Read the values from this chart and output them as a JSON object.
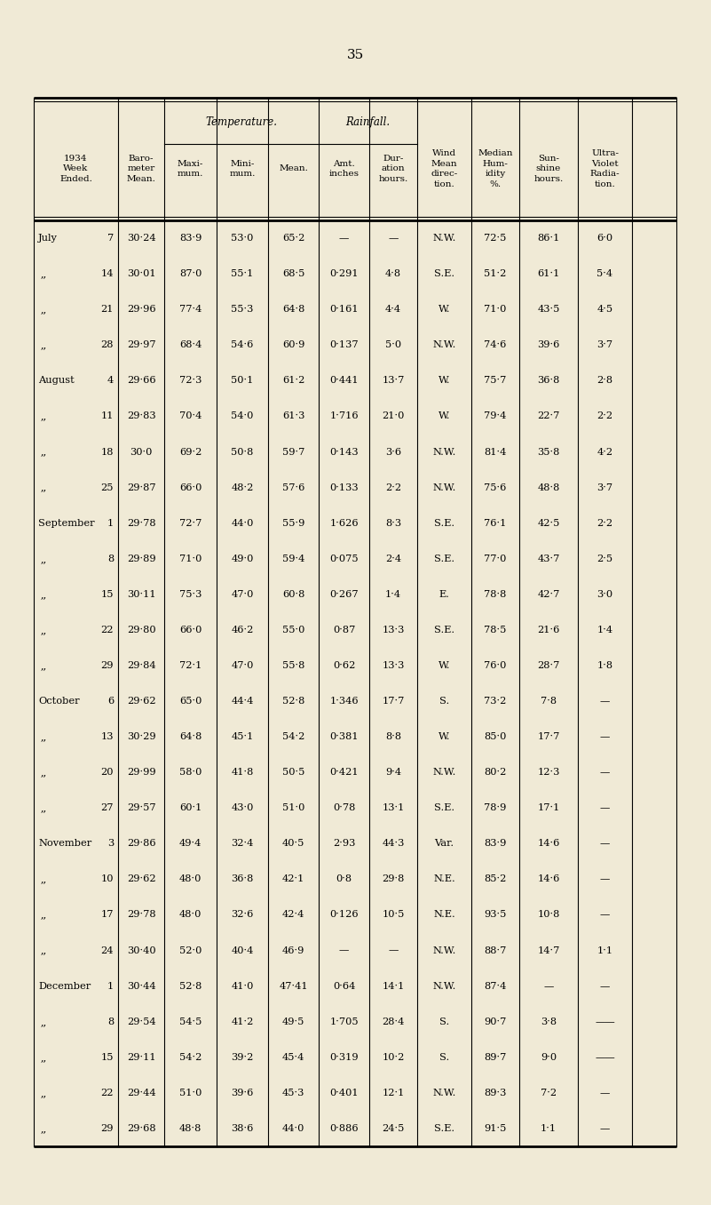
{
  "page_number": "35",
  "bg_color": "#f0ead6",
  "rows": [
    [
      "July",
      "7",
      "30·24",
      "83·9",
      "53·0",
      "65·2",
      "—",
      "—",
      "N.W.",
      "72·5",
      "86·1",
      "6·0"
    ],
    [
      ",,",
      "14",
      "30·01",
      "87·0",
      "55·1",
      "68·5",
      "0·291",
      "4·8",
      "S.E.",
      "51·2",
      "61·1",
      "5·4"
    ],
    [
      ",,",
      "21",
      "29·96",
      "77·4",
      "55·3",
      "64·8",
      "0·161",
      "4·4",
      "W.",
      "71·0",
      "43·5",
      "4·5"
    ],
    [
      ",,",
      "28",
      "29·97",
      "68·4",
      "54·6",
      "60·9",
      "0·137",
      "5·0",
      "N.W.",
      "74·6",
      "39·6",
      "3·7"
    ],
    [
      "August",
      "4",
      "29·66",
      "72·3",
      "50·1",
      "61·2",
      "0·441",
      "13·7",
      "W.",
      "75·7",
      "36·8",
      "2·8"
    ],
    [
      ",,",
      "11",
      "29·83",
      "70·4",
      "54·0",
      "61·3",
      "1·716",
      "21·0",
      "W.",
      "79·4",
      "22·7",
      "2·2"
    ],
    [
      ",,",
      "18",
      "30·0",
      "69·2",
      "50·8",
      "59·7",
      "0·143",
      "3·6",
      "N.W.",
      "81·4",
      "35·8",
      "4·2"
    ],
    [
      ",,",
      "25",
      "29·87",
      "66·0",
      "48·2",
      "57·6",
      "0·133",
      "2·2",
      "N.W.",
      "75·6",
      "48·8",
      "3·7"
    ],
    [
      "September",
      "1",
      "29·78",
      "72·7",
      "44·0",
      "55·9",
      "1·626",
      "8·3",
      "S.E.",
      "76·1",
      "42·5",
      "2·2"
    ],
    [
      ",,",
      "8",
      "29·89",
      "71·0",
      "49·0",
      "59·4",
      "0·075",
      "2·4",
      "S.E.",
      "77·0",
      "43·7",
      "2·5"
    ],
    [
      ",,",
      "15",
      "30·11",
      "75·3",
      "47·0",
      "60·8",
      "0·267",
      "1·4",
      "E.",
      "78·8",
      "42·7",
      "3·0"
    ],
    [
      ",,",
      "22",
      "29·80",
      "66·0",
      "46·2",
      "55·0",
      "0·87",
      "13·3",
      "S.E.",
      "78·5",
      "21·6",
      "1·4"
    ],
    [
      ",,",
      "29",
      "29·84",
      "72·1",
      "47·0",
      "55·8",
      "0·62",
      "13·3",
      "W.",
      "76·0",
      "28·7",
      "1·8"
    ],
    [
      "October",
      "6",
      "29·62",
      "65·0",
      "44·4",
      "52·8",
      "1·346",
      "17·7",
      "S.",
      "73·2",
      "7·8",
      "—"
    ],
    [
      ",,",
      "13",
      "30·29",
      "64·8",
      "45·1",
      "54·2",
      "0·381",
      "8·8",
      "W.",
      "85·0",
      "17·7",
      "—"
    ],
    [
      ",,",
      "20",
      "29·99",
      "58·0",
      "41·8",
      "50·5",
      "0·421",
      "9·4",
      "N.W.",
      "80·2",
      "12·3",
      "—"
    ],
    [
      ",,",
      "27",
      "29·57",
      "60·1",
      "43·0",
      "51·0",
      "0·78",
      "13·1",
      "S.E.",
      "78·9",
      "17·1",
      "—"
    ],
    [
      "November",
      "3",
      "29·86",
      "49·4",
      "32·4",
      "40·5",
      "2·93",
      "44·3",
      "Var.",
      "83·9",
      "14·6",
      "—"
    ],
    [
      ",,",
      "10",
      "29·62",
      "48·0",
      "36·8",
      "42·1",
      "0·8",
      "29·8",
      "N.E.",
      "85·2",
      "14·6",
      "—"
    ],
    [
      ",,",
      "17",
      "29·78",
      "48·0",
      "32·6",
      "42·4",
      "0·126",
      "10·5",
      "N.E.",
      "93·5",
      "10·8",
      "—"
    ],
    [
      ",,",
      "24",
      "30·40",
      "52·0",
      "40·4",
      "46·9",
      "—",
      "—",
      "N.W.",
      "88·7",
      "14·7",
      "1·1"
    ],
    [
      "December",
      "1",
      "30·44",
      "52·8",
      "41·0",
      "47·41",
      "0·64",
      "14·1",
      "N.W.",
      "87·4",
      "—",
      "—"
    ],
    [
      ",,",
      "8",
      "29·54",
      "54·5",
      "41·2",
      "49·5",
      "1·705",
      "28·4",
      "S.",
      "90·7",
      "3·8",
      "——"
    ],
    [
      ",,",
      "15",
      "29·11",
      "54·2",
      "39·2",
      "45·4",
      "0·319",
      "10·2",
      "S.",
      "89·7",
      "9·0",
      "——"
    ],
    [
      ",,",
      "22",
      "29·44",
      "51·0",
      "39·6",
      "45·3",
      "0·401",
      "12·1",
      "N.W.",
      "89·3",
      "7·2",
      "—"
    ],
    [
      ",,",
      "29",
      "29·68",
      "48·8",
      "38·6",
      "44·0",
      "0·886",
      "24·5",
      "S.E.",
      "91·5",
      "1·1",
      "—"
    ]
  ]
}
